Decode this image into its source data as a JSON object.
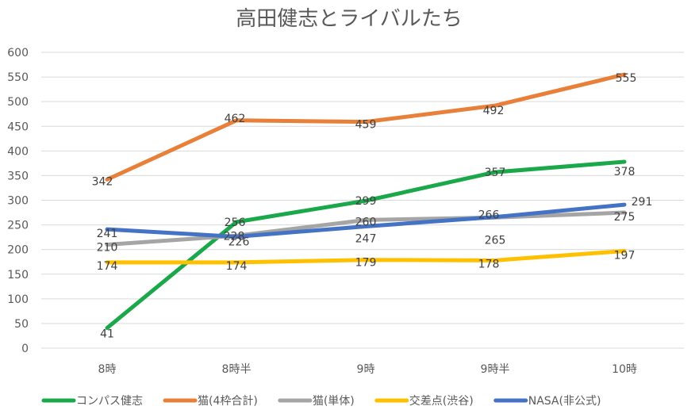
{
  "chart_data": {
    "type": "line",
    "title": "高田健志とライバルたち",
    "xlabel": "",
    "ylabel": "",
    "categories": [
      "8時",
      "8時半",
      "9時",
      "9時半",
      "10時"
    ],
    "ylim": [
      0,
      600
    ],
    "yticks": [
      0,
      50,
      100,
      150,
      200,
      250,
      300,
      350,
      400,
      450,
      500,
      550,
      600
    ],
    "grid": true,
    "legend_position": "bottom",
    "series": [
      {
        "name": "コンパス健志",
        "color": "#1AA84A",
        "values": [
          41,
          256,
          299,
          357,
          378
        ]
      },
      {
        "name": "猫(4枠合計)",
        "color": "#E8803A",
        "values": [
          342,
          462,
          459,
          492,
          555
        ]
      },
      {
        "name": "猫(単体)",
        "color": "#A5A5A5",
        "values": [
          210,
          228,
          260,
          265,
          275
        ]
      },
      {
        "name": "交差点(渋谷)",
        "color": "#FFC000",
        "values": [
          174,
          174,
          179,
          178,
          197
        ]
      },
      {
        "name": "NASA(非公式)",
        "color": "#4472C4",
        "values": [
          241,
          226,
          247,
          266,
          291
        ]
      }
    ]
  }
}
